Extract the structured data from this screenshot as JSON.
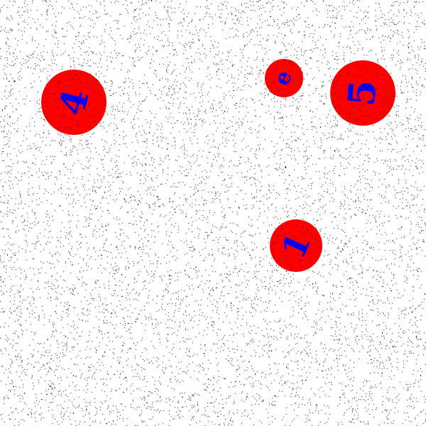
{
  "colors": {
    "background": "#ffffff",
    "noise": "#000000",
    "circle_fill": "#ff0000",
    "label": "#0000ff"
  },
  "circles": [
    {
      "id": "4",
      "label": "4"
    },
    {
      "id": "e",
      "label": "e"
    },
    {
      "id": "5",
      "label": "5"
    },
    {
      "id": "1",
      "label": "1"
    }
  ]
}
